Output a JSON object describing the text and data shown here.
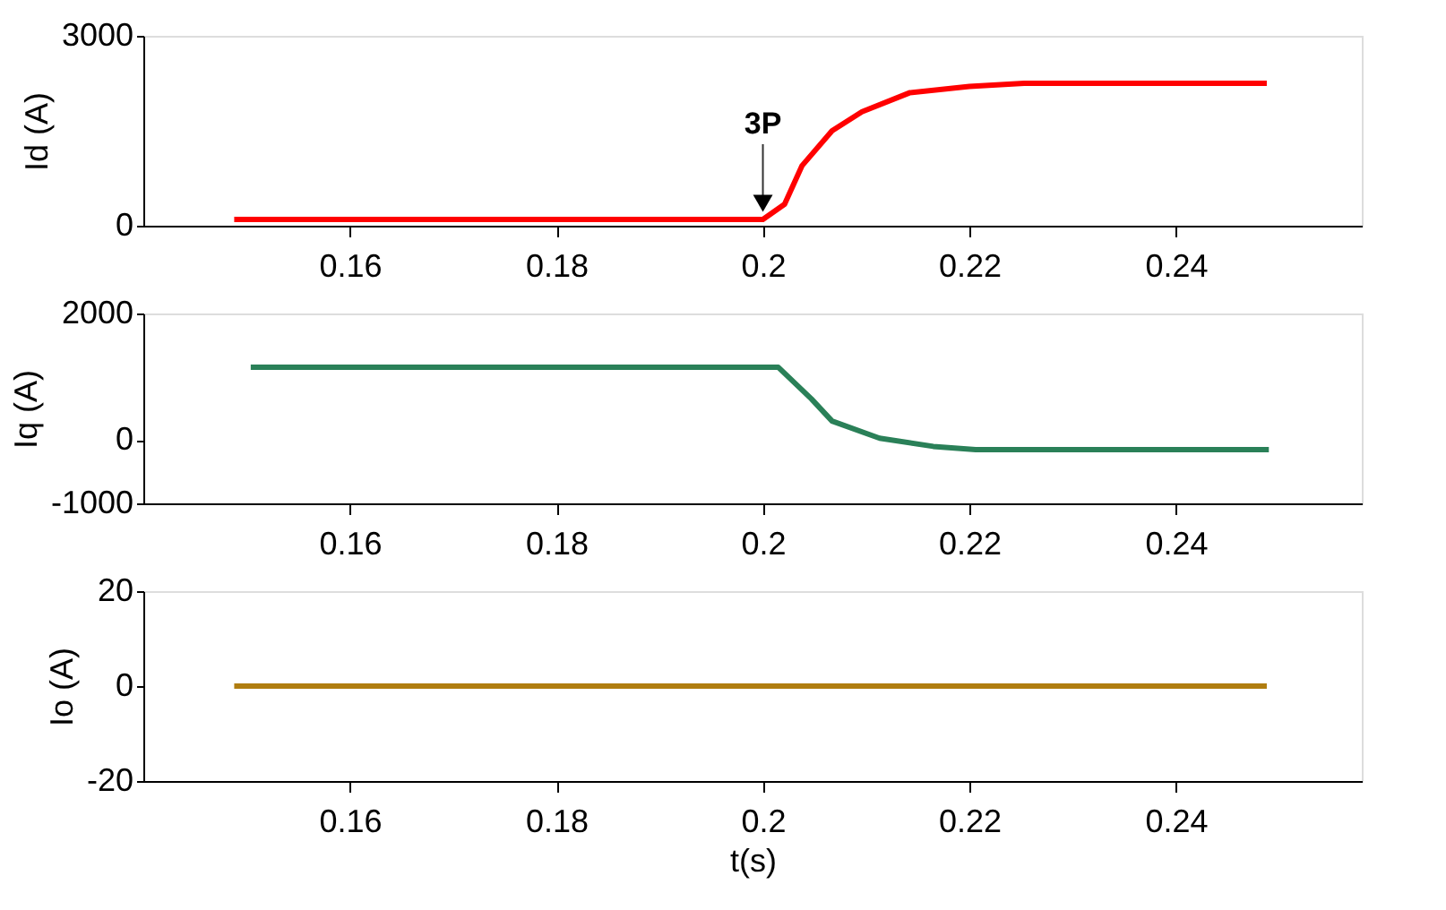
{
  "chart_data": [
    {
      "type": "line",
      "ylabel": "Id (A)",
      "xlim": [
        0.14,
        0.258
      ],
      "xticks": [
        0.16,
        0.18,
        0.2,
        0.22,
        0.24
      ],
      "ylim": [
        0,
        3000
      ],
      "yticks": [
        0,
        3000
      ],
      "grid": false,
      "line_style": "solid",
      "marker": "none",
      "annotations": [
        {
          "text": "3P",
          "x": 0.2,
          "y": 100
        }
      ],
      "series": [
        {
          "color": "#ff0000",
          "x": [
            0.1488,
            0.2,
            0.2021,
            0.2038,
            0.2067,
            0.2096,
            0.2142,
            0.22,
            0.2253,
            0.2488
          ],
          "values": [
            100,
            100,
            340,
            950,
            1500,
            1800,
            2100,
            2200,
            2250,
            2250
          ]
        }
      ]
    },
    {
      "type": "line",
      "ylabel": "Iq (A)",
      "xlim": [
        0.14,
        0.258
      ],
      "xticks": [
        0.16,
        0.18,
        0.2,
        0.22,
        0.24
      ],
      "ylim": [
        -1000,
        2000
      ],
      "yticks": [
        -1000,
        0,
        2000
      ],
      "grid": false,
      "line_style": "solid",
      "marker": "none",
      "series": [
        {
          "color": "#2a8058",
          "x": [
            0.1504,
            0.2015,
            0.2047,
            0.2067,
            0.2113,
            0.2165,
            0.2206,
            0.249
          ],
          "values": [
            1150,
            1150,
            650,
            300,
            30,
            -100,
            -150,
            -150
          ]
        }
      ]
    },
    {
      "type": "line",
      "ylabel": "Io (A)",
      "xlabel": "t(s)",
      "xlim": [
        0.14,
        0.258
      ],
      "xticks": [
        0.16,
        0.18,
        0.2,
        0.22,
        0.24
      ],
      "ylim": [
        -20,
        20
      ],
      "yticks": [
        -20,
        0,
        20
      ],
      "grid": false,
      "line_style": "solid",
      "marker": "none",
      "series": [
        {
          "color": "#b07d10",
          "x": [
            0.1488,
            0.2488
          ],
          "values": [
            0,
            0
          ]
        }
      ]
    }
  ]
}
